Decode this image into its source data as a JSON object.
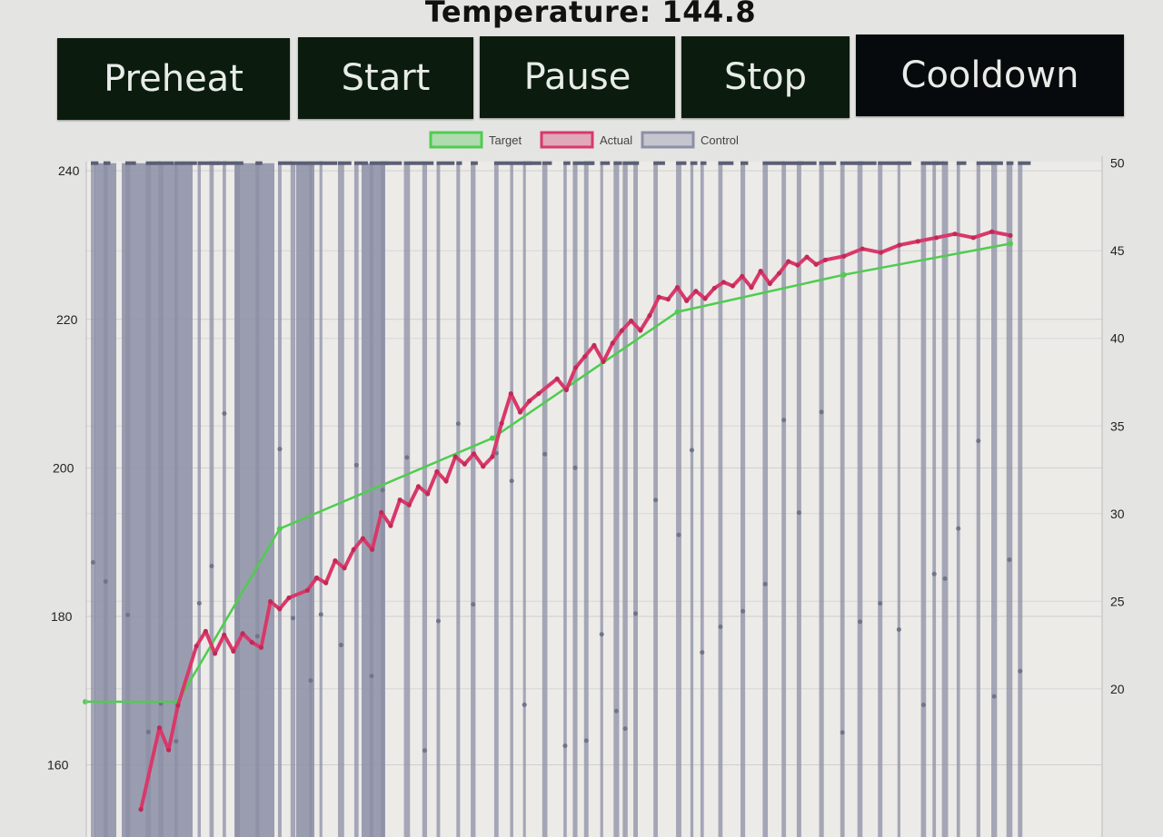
{
  "header": {
    "title": "Temperature: 144.8"
  },
  "buttons": [
    {
      "id": "preheat",
      "label": "Preheat"
    },
    {
      "id": "start",
      "label": "Start"
    },
    {
      "id": "pause",
      "label": "Pause"
    },
    {
      "id": "stop",
      "label": "Stop"
    },
    {
      "id": "cooldown",
      "label": "Cooldown"
    }
  ],
  "colors": {
    "button_bg": "#0b1c0e",
    "button_cooldown_bg": "#070a0c",
    "target": "#4fcc4f",
    "actual": "#d9386a",
    "control": "#8c8fa6",
    "grid": "#cfcfcf"
  },
  "chart_data": {
    "type": "line",
    "legend": {
      "position": "top-center",
      "entries": [
        "Target",
        "Actual",
        "Control"
      ]
    },
    "y_left": {
      "ticks": [
        "240",
        "220",
        "200",
        "180",
        "160"
      ],
      "range": [
        156.4,
        241
      ]
    },
    "y_right": {
      "ticks": [
        "50",
        "45",
        "40",
        "35",
        "30",
        "25",
        "20"
      ],
      "range": [
        16,
        50.4
      ]
    },
    "grid": true,
    "series": [
      {
        "name": "Target",
        "axis": "left",
        "points": [
          [
            0,
            168.5
          ],
          [
            10,
            168.5
          ],
          [
            21,
            191.8
          ],
          [
            44,
            204
          ],
          [
            64,
            221
          ],
          [
            82,
            226
          ],
          [
            100,
            230.2
          ]
        ]
      },
      {
        "name": "Actual",
        "axis": "left",
        "points": [
          [
            6,
            154
          ],
          [
            8,
            165
          ],
          [
            9,
            162
          ],
          [
            10,
            168
          ],
          [
            12,
            176
          ],
          [
            13,
            178
          ],
          [
            14,
            175
          ],
          [
            15,
            177.5
          ],
          [
            16,
            175.3
          ],
          [
            17,
            177.7
          ],
          [
            18,
            176.5
          ],
          [
            19,
            175.8
          ],
          [
            20,
            182
          ],
          [
            21,
            181
          ],
          [
            22,
            182.5
          ],
          [
            24,
            183.5
          ],
          [
            25,
            185.2
          ],
          [
            26,
            184.5
          ],
          [
            27,
            187.5
          ],
          [
            28,
            186.5
          ],
          [
            29,
            189
          ],
          [
            30,
            190.5
          ],
          [
            31,
            189
          ],
          [
            32,
            194
          ],
          [
            33,
            192.2
          ],
          [
            34,
            195.7
          ],
          [
            35,
            195
          ],
          [
            36,
            197.5
          ],
          [
            37,
            196.5
          ],
          [
            38,
            199.5
          ],
          [
            39,
            198.2
          ],
          [
            40,
            201.5
          ],
          [
            41,
            200.5
          ],
          [
            42,
            201.9
          ],
          [
            43,
            200.2
          ],
          [
            44,
            201.5
          ],
          [
            45,
            206
          ],
          [
            46,
            210
          ],
          [
            47,
            207.5
          ],
          [
            48,
            209
          ],
          [
            49,
            210
          ],
          [
            51,
            212
          ],
          [
            52,
            210.5
          ],
          [
            53,
            213.5
          ],
          [
            54,
            215
          ],
          [
            55,
            216.5
          ],
          [
            56,
            214.3
          ],
          [
            57,
            216.8
          ],
          [
            58,
            218.5
          ],
          [
            59,
            219.8
          ],
          [
            60,
            218.5
          ],
          [
            61,
            220.5
          ],
          [
            62,
            223
          ],
          [
            63,
            222.7
          ],
          [
            64,
            224.3
          ],
          [
            65,
            222.5
          ],
          [
            66,
            223.8
          ],
          [
            67,
            222.8
          ],
          [
            68,
            224.2
          ],
          [
            69,
            225
          ],
          [
            70,
            224.5
          ],
          [
            71,
            225.8
          ],
          [
            72,
            224.3
          ],
          [
            73,
            226.5
          ],
          [
            74,
            224.8
          ],
          [
            75,
            226.2
          ],
          [
            76,
            227.8
          ],
          [
            77,
            227.3
          ],
          [
            78,
            228.4
          ],
          [
            79,
            227.4
          ],
          [
            80,
            228
          ],
          [
            82,
            228.5
          ],
          [
            84,
            229.5
          ],
          [
            86,
            229
          ],
          [
            88,
            230
          ],
          [
            90,
            230.5
          ],
          [
            92,
            231
          ],
          [
            94,
            231.5
          ],
          [
            96,
            231
          ],
          [
            98,
            231.8
          ],
          [
            100,
            231.3
          ]
        ]
      },
      {
        "name": "Control",
        "axis": "right",
        "note_only": false,
        "x_extent": [
          0,
          100
        ],
        "values_range": [
          16,
          50
        ]
      }
    ]
  }
}
